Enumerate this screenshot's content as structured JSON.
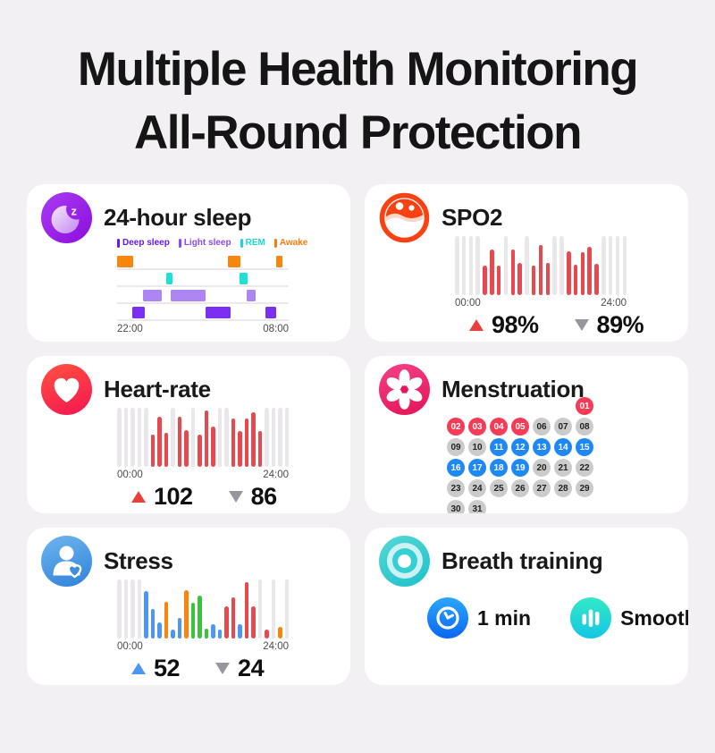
{
  "page": {
    "background": "#f2f0f3",
    "title_line1": "Multiple Health Monitoring",
    "title_line2": "All-Round Protection"
  },
  "bar_colors": {
    "gray": "#e9e7ea",
    "red": "#e74a4e",
    "blue": "#4d96f2",
    "orange": "#f8860c",
    "green": "#3cc23c"
  },
  "lane_colors": {
    "awake": "#F8850C",
    "rem": "#1FE0D9",
    "light": "#AE86F2",
    "deep": "#7B2FF0"
  },
  "day_colors": {
    "red": {
      "bg": "#F53B56",
      "fg": "#ffffff"
    },
    "blue": {
      "bg": "#1E88F7",
      "fg": "#ffffff"
    },
    "gray": {
      "bg": "#CBCBCB",
      "fg": "#222222"
    }
  },
  "cards": {
    "sleep": {
      "title": "24-hour sleep",
      "legend": [
        {
          "label": "Deep sleep",
          "color": "#6619E8"
        },
        {
          "label": "Light sleep",
          "color": "#8A4BF0"
        },
        {
          "label": "REM",
          "color": "#18D8D8"
        },
        {
          "label": "Awake",
          "color": "#F87D10"
        }
      ],
      "lanes": [
        {
          "type": "awake",
          "blocks": [
            [
              0,
              9.5
            ],
            [
              64.5,
              7.5
            ],
            [
              92.5,
              4
            ]
          ]
        },
        {
          "type": "rem",
          "blocks": [
            [
              28.6,
              3.9
            ],
            [
              71.5,
              4.5
            ]
          ]
        },
        {
          "type": "light",
          "blocks": [
            [
              15.3,
              11
            ],
            [
              31.1,
              20.3
            ],
            [
              75.4,
              5.3
            ]
          ]
        },
        {
          "type": "deep",
          "blocks": [
            [
              8.9,
              7.3
            ],
            [
              51.7,
              14.6
            ],
            [
              86.3,
              6.4
            ]
          ]
        }
      ],
      "time_start": "22:00",
      "time_end": "08:00"
    },
    "spo2": {
      "title": "SPO2",
      "bars": [
        {
          "h": 1,
          "c": "gray"
        },
        {
          "h": 1,
          "c": "gray"
        },
        {
          "h": 1,
          "c": "gray"
        },
        {
          "h": 1,
          "c": "gray"
        },
        {
          "h": 0.5,
          "c": "red"
        },
        {
          "h": 0.78,
          "c": "red"
        },
        {
          "h": 0.5,
          "c": "red"
        },
        {
          "h": 1,
          "c": "gray"
        },
        {
          "h": 0.78,
          "c": "red"
        },
        {
          "h": 0.55,
          "c": "red"
        },
        {
          "h": 1,
          "c": "gray"
        },
        {
          "h": 0.5,
          "c": "red"
        },
        {
          "h": 0.85,
          "c": "red"
        },
        {
          "h": 0.55,
          "c": "red"
        },
        {
          "h": 1,
          "c": "gray"
        },
        {
          "h": 1,
          "c": "gray"
        },
        {
          "h": 0.75,
          "c": "red"
        },
        {
          "h": 0.52,
          "c": "red"
        },
        {
          "h": 0.72,
          "c": "red"
        },
        {
          "h": 0.82,
          "c": "red"
        },
        {
          "h": 0.53,
          "c": "red"
        },
        {
          "h": 1,
          "c": "gray"
        },
        {
          "h": 1,
          "c": "gray"
        },
        {
          "h": 1,
          "c": "gray"
        },
        {
          "h": 1,
          "c": "gray"
        }
      ],
      "time_start": "00:00",
      "time_end": "24:00",
      "max": "98%",
      "min": "89%",
      "up_color": "#E8403C",
      "down_color": "#97979D"
    },
    "heart": {
      "title": "Heart-rate",
      "bars": [
        {
          "h": 1,
          "c": "gray"
        },
        {
          "h": 1,
          "c": "gray"
        },
        {
          "h": 1,
          "c": "gray"
        },
        {
          "h": 1,
          "c": "gray"
        },
        {
          "h": 1,
          "c": "gray"
        },
        {
          "h": 0.55,
          "c": "red"
        },
        {
          "h": 0.85,
          "c": "red"
        },
        {
          "h": 0.57,
          "c": "red"
        },
        {
          "h": 1,
          "c": "gray"
        },
        {
          "h": 0.85,
          "c": "red"
        },
        {
          "h": 0.62,
          "c": "red"
        },
        {
          "h": 1,
          "c": "gray"
        },
        {
          "h": 0.55,
          "c": "red"
        },
        {
          "h": 0.95,
          "c": "red"
        },
        {
          "h": 0.68,
          "c": "red"
        },
        {
          "h": 1,
          "c": "gray"
        },
        {
          "h": 1,
          "c": "gray"
        },
        {
          "h": 0.82,
          "c": "red"
        },
        {
          "h": 0.6,
          "c": "red"
        },
        {
          "h": 0.82,
          "c": "red"
        },
        {
          "h": 0.93,
          "c": "red"
        },
        {
          "h": 0.6,
          "c": "red"
        },
        {
          "h": 1,
          "c": "gray"
        },
        {
          "h": 1,
          "c": "gray"
        },
        {
          "h": 1,
          "c": "gray"
        },
        {
          "h": 1,
          "c": "gray"
        }
      ],
      "time_start": "00:00",
      "time_end": "24:00",
      "max": "102",
      "min": "86",
      "up_color": "#E8403C",
      "down_color": "#97979D"
    },
    "menstruation": {
      "title": "Menstruation",
      "leading_blanks": 6,
      "days": [
        {
          "d": "01",
          "t": "red"
        },
        {
          "d": "02",
          "t": "red"
        },
        {
          "d": "03",
          "t": "red"
        },
        {
          "d": "04",
          "t": "red"
        },
        {
          "d": "05",
          "t": "red"
        },
        {
          "d": "06",
          "t": "gray"
        },
        {
          "d": "07",
          "t": "gray"
        },
        {
          "d": "08",
          "t": "gray"
        },
        {
          "d": "09",
          "t": "gray"
        },
        {
          "d": "10",
          "t": "gray"
        },
        {
          "d": "11",
          "t": "blue"
        },
        {
          "d": "12",
          "t": "blue"
        },
        {
          "d": "13",
          "t": "blue"
        },
        {
          "d": "14",
          "t": "blue"
        },
        {
          "d": "15",
          "t": "blue"
        },
        {
          "d": "16",
          "t": "blue"
        },
        {
          "d": "17",
          "t": "blue"
        },
        {
          "d": "18",
          "t": "blue"
        },
        {
          "d": "19",
          "t": "blue"
        },
        {
          "d": "20",
          "t": "gray"
        },
        {
          "d": "21",
          "t": "gray"
        },
        {
          "d": "22",
          "t": "gray"
        },
        {
          "d": "23",
          "t": "gray"
        },
        {
          "d": "24",
          "t": "gray"
        },
        {
          "d": "25",
          "t": "gray"
        },
        {
          "d": "26",
          "t": "gray"
        },
        {
          "d": "27",
          "t": "gray"
        },
        {
          "d": "28",
          "t": "gray"
        },
        {
          "d": "29",
          "t": "gray"
        },
        {
          "d": "30",
          "t": "gray"
        },
        {
          "d": "31",
          "t": "gray"
        }
      ]
    },
    "stress": {
      "title": "Stress",
      "bars": [
        {
          "h": 1,
          "c": "gray"
        },
        {
          "h": 1,
          "c": "gray"
        },
        {
          "h": 1,
          "c": "gray"
        },
        {
          "h": 1,
          "c": "gray"
        },
        {
          "h": 0.8,
          "c": "blue"
        },
        {
          "h": 0.5,
          "c": "blue"
        },
        {
          "h": 0.27,
          "c": "blue"
        },
        {
          "h": 0.62,
          "c": "orange"
        },
        {
          "h": 0.15,
          "c": "blue"
        },
        {
          "h": 0.35,
          "c": "blue"
        },
        {
          "h": 0.82,
          "c": "orange"
        },
        {
          "h": 0.6,
          "c": "green"
        },
        {
          "h": 0.72,
          "c": "green"
        },
        {
          "h": 0.16,
          "c": "green"
        },
        {
          "h": 0.24,
          "c": "blue"
        },
        {
          "h": 0.15,
          "c": "blue"
        },
        {
          "h": 0.55,
          "c": "red"
        },
        {
          "h": 0.7,
          "c": "red"
        },
        {
          "h": 0.25,
          "c": "blue"
        },
        {
          "h": 0.95,
          "c": "red"
        },
        {
          "h": 0.55,
          "c": "red"
        },
        {
          "h": 1,
          "c": "gray"
        },
        {
          "h": 0.15,
          "c": "red"
        },
        {
          "h": 1,
          "c": "gray"
        },
        {
          "h": 0.2,
          "c": "orange"
        },
        {
          "h": 1,
          "c": "gray"
        }
      ],
      "time_start": "00:00",
      "time_end": "24:00",
      "max": "52",
      "min": "24",
      "up_color": "#4D96F2",
      "down_color": "#97979D"
    },
    "breath": {
      "title": "Breath training",
      "items": [
        {
          "icon": "clock-icon",
          "label": "1 min"
        },
        {
          "icon": "bars-icon",
          "label": "Smooth"
        }
      ]
    }
  }
}
